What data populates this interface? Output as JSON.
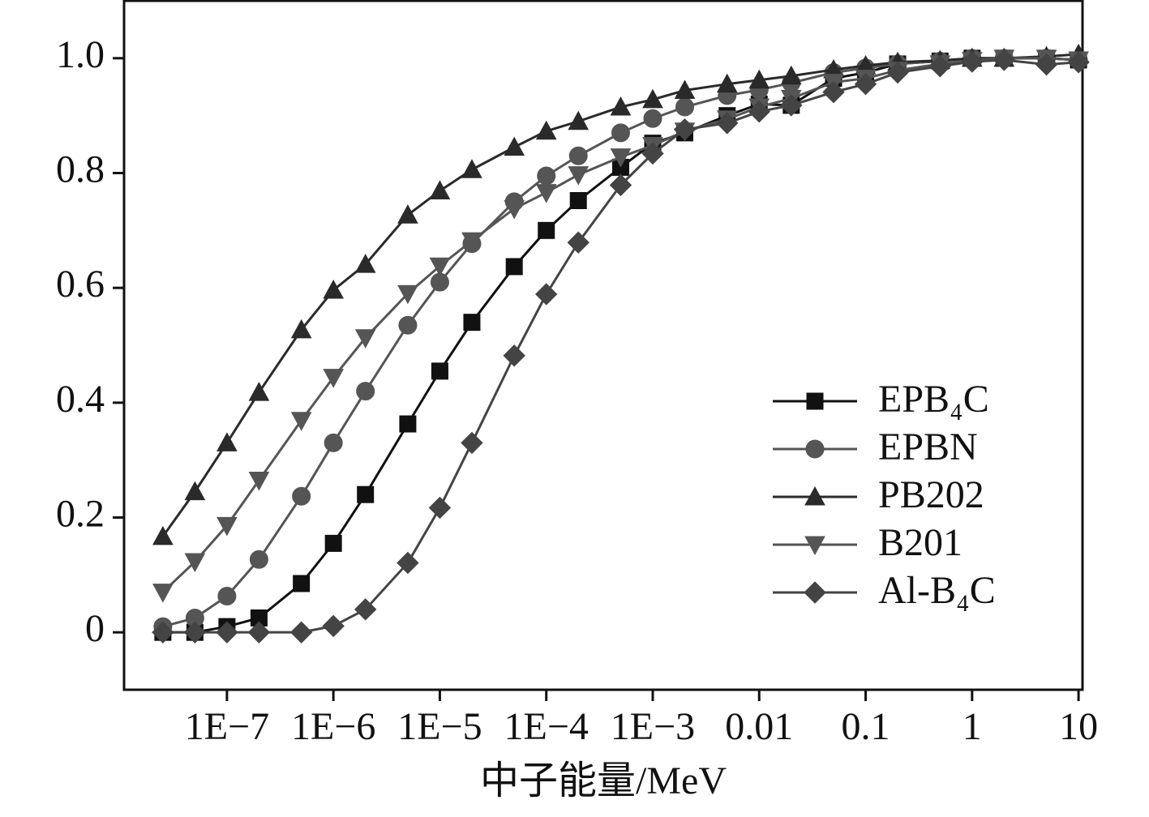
{
  "chart_data": {
    "type": "line",
    "x_label": "中子能量/MeV",
    "x": [
      2.5e-08,
      5e-08,
      1e-07,
      2e-07,
      5e-07,
      1e-06,
      2e-06,
      5e-06,
      1e-05,
      2e-05,
      5e-05,
      0.0001,
      0.0002,
      0.0005,
      0.001,
      0.002,
      0.005,
      0.01,
      0.02,
      0.05,
      0.1,
      0.2,
      0.5,
      1,
      2,
      5,
      10
    ],
    "series": [
      {
        "name": "EPB₄C",
        "color": "#111111",
        "marker": "square",
        "values": [
          0,
          0,
          0.01,
          0.025,
          0.085,
          0.155,
          0.24,
          0.363,
          0.455,
          0.54,
          0.637,
          0.7,
          0.752,
          0.81,
          0.852,
          0.87,
          0.9,
          0.92,
          0.918,
          0.965,
          0.975,
          0.99,
          0.995,
          1,
          1,
          1,
          0.997
        ]
      },
      {
        "name": "EPBN",
        "color": "#555555",
        "marker": "circle",
        "values": [
          0.01,
          0.025,
          0.063,
          0.127,
          0.237,
          0.33,
          0.42,
          0.535,
          0.61,
          0.677,
          0.75,
          0.795,
          0.83,
          0.87,
          0.895,
          0.915,
          0.935,
          0.945,
          0.957,
          0.975,
          0.983,
          0.99,
          0.995,
          1,
          1,
          1,
          0.997
        ]
      },
      {
        "name": "PB202",
        "color": "#2a2a2a",
        "marker": "triangle-up",
        "values": [
          0.167,
          0.245,
          0.33,
          0.418,
          0.527,
          0.596,
          0.641,
          0.727,
          0.769,
          0.806,
          0.845,
          0.873,
          0.89,
          0.915,
          0.928,
          0.944,
          0.955,
          0.962,
          0.969,
          0.98,
          0.987,
          0.993,
          0.996,
          1,
          1,
          1.003,
          1.007
        ]
      },
      {
        "name": "B201",
        "color": "#555555",
        "marker": "triangle-down",
        "values": [
          0.07,
          0.123,
          0.186,
          0.265,
          0.369,
          0.444,
          0.513,
          0.59,
          0.638,
          0.682,
          0.738,
          0.766,
          0.797,
          0.828,
          0.848,
          0.873,
          0.894,
          0.915,
          0.93,
          0.958,
          0.965,
          0.979,
          0.99,
          0.996,
          1,
          1,
          0.997
        ]
      },
      {
        "name": "Al-B₄C",
        "color": "#444444",
        "marker": "diamond",
        "values": [
          0,
          0,
          0,
          0,
          0,
          0.011,
          0.04,
          0.121,
          0.217,
          0.33,
          0.482,
          0.589,
          0.679,
          0.779,
          0.834,
          0.876,
          0.887,
          0.907,
          0.918,
          0.941,
          0.955,
          0.975,
          0.986,
          0.994,
          0.997,
          0.989,
          0.993
        ]
      }
    ],
    "xscale": "log",
    "xlim": [
      1.08e-08,
      10.9
    ],
    "xticks": [
      {
        "value": 1e-07,
        "label": "1E−7"
      },
      {
        "value": 1e-06,
        "label": "1E−6"
      },
      {
        "value": 1e-05,
        "label": "1E−5"
      },
      {
        "value": 0.0001,
        "label": "1E−4"
      },
      {
        "value": 0.001,
        "label": "1E−3"
      },
      0.01,
      0.1,
      1,
      10
    ],
    "ylim": [
      -0.1,
      1.1
    ],
    "yticks": [
      0,
      0.2,
      0.4,
      0.6,
      0.8,
      {
        "value": 1,
        "label": "1.0"
      }
    ],
    "legend": "lower-right"
  }
}
